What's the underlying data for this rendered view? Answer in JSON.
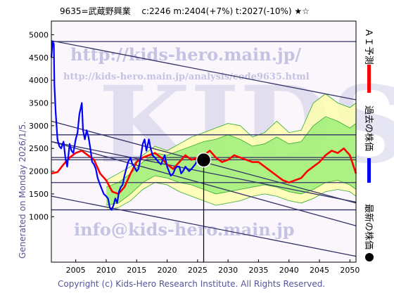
{
  "header": {
    "title": "9635=武蔵野興業　 c:2246  m:2404(+7%)  t:2027(-10%)  ★☆"
  },
  "left_label": "Generated on Monday 2026/1/5.",
  "copyright": "Copyright (c) Kids-Hero Research Institute. All Rights Reserved.",
  "watermarks": {
    "url_large": "http://kids-hero.main.jp/",
    "url_small": "http://kids-hero.main.jp/analysis/code9635.html",
    "email": "info@kids-hero.main.jp",
    "big": "KIDS"
  },
  "legend": {
    "ai_forecast": "ＡＩ予測",
    "past_price": "過去の株価",
    "latest_price": "最新の株価"
  },
  "colors": {
    "past_price": "#0000ff",
    "ai_forecast": "#ff0000",
    "latest_marker": "#000000",
    "trend_lines": "#333366",
    "band_outer": "#ffffaa",
    "band_inner": "#99ee77",
    "band_lines": "#33aa33",
    "background": "#faf6fb"
  },
  "chart_data": {
    "type": "line",
    "title": "9635=武蔵野興業　 c:2246  m:2404(+7%)  t:2027(-10%)  ★☆",
    "x_ticks": [
      2005,
      2010,
      2015,
      2020,
      2025,
      2030,
      2035,
      2040,
      2045,
      2050
    ],
    "y_ticks": [
      1000,
      1500,
      2000,
      2500,
      3000,
      3500,
      4000,
      4500,
      5000
    ],
    "xlim": [
      2001,
      2051
    ],
    "ylim": [
      0,
      5300
    ],
    "latest": {
      "x": 2026.0,
      "y": 2246
    },
    "series": [
      {
        "name": "過去の株価",
        "x": [
          2001.0,
          2001.2,
          2001.4,
          2001.5,
          2001.7,
          2002.0,
          2002.3,
          2002.6,
          2003.0,
          2003.3,
          2003.6,
          2004.0,
          2004.3,
          2004.6,
          2005.0,
          2005.3,
          2005.6,
          2006.0,
          2006.2,
          2006.5,
          2006.8,
          2007.1,
          2007.4,
          2007.7,
          2008.0,
          2008.3,
          2008.6,
          2009.0,
          2009.3,
          2009.6,
          2010.0,
          2010.3,
          2010.6,
          2010.9,
          2011.2,
          2011.5,
          2011.8,
          2012.1,
          2012.4,
          2012.7,
          2013.0,
          2013.3,
          2013.6,
          2014.0,
          2014.3,
          2014.6,
          2015.0,
          2015.3,
          2015.6,
          2016.0,
          2016.3,
          2016.6,
          2017.0,
          2017.3,
          2017.6,
          2018.0,
          2018.3,
          2018.6,
          2019.0,
          2019.3,
          2019.6,
          2020.0,
          2020.3,
          2020.6,
          2021.0,
          2021.3,
          2021.6,
          2022.0,
          2022.3,
          2022.6,
          2023.0,
          2023.3,
          2023.6,
          2024.0,
          2024.3,
          2024.6,
          2025.0,
          2025.3,
          2025.6,
          2026.0
        ],
        "values": [
          4500,
          4850,
          4800,
          3900,
          3300,
          2700,
          2550,
          2500,
          2650,
          2300,
          2100,
          2600,
          2450,
          2400,
          2700,
          2850,
          3250,
          3500,
          2900,
          2700,
          2900,
          2750,
          2500,
          2200,
          2150,
          2050,
          1850,
          1700,
          1600,
          1500,
          1450,
          1400,
          1200,
          1150,
          1250,
          1400,
          1300,
          1550,
          1650,
          1700,
          1900,
          2050,
          2200,
          2300,
          2150,
          2100,
          2000,
          2050,
          2250,
          2600,
          2700,
          2450,
          2700,
          2500,
          2350,
          2300,
          2250,
          2200,
          2150,
          2250,
          2350,
          2100,
          2000,
          1900,
          1950,
          2050,
          2100,
          2100,
          1950,
          2000,
          2100,
          2050,
          2000,
          2050,
          2100,
          2150,
          2250,
          2300,
          2200,
          2246
        ]
      },
      {
        "name": "ＡＩ予測",
        "x": [
          2001.0,
          2002.0,
          2003.0,
          2004.0,
          2005.0,
          2006.0,
          2007.0,
          2008.0,
          2009.0,
          2010.0,
          2011.0,
          2012.0,
          2013.0,
          2014.0,
          2015.0,
          2016.0,
          2017.0,
          2018.0,
          2019.0,
          2020.0,
          2021.0,
          2022.0,
          2023.0,
          2024.0,
          2025.0,
          2026.0,
          2027.0,
          2028.0,
          2029.0,
          2030.0,
          2031.0,
          2032.0,
          2033.0,
          2034.0,
          2035.0,
          2036.0,
          2037.0,
          2038.0,
          2039.0,
          2040.0,
          2041.0,
          2042.0,
          2043.0,
          2044.0,
          2045.0,
          2046.0,
          2047.0,
          2048.0,
          2049.0,
          2050.0,
          2051.0
        ],
        "values": [
          1950,
          1980,
          2150,
          2300,
          2400,
          2450,
          2350,
          2250,
          1950,
          1800,
          1550,
          1500,
          1650,
          1950,
          2200,
          2300,
          2350,
          2400,
          2300,
          2150,
          2050,
          2200,
          2350,
          2250,
          2300,
          2350,
          2450,
          2300,
          2200,
          2250,
          2350,
          2300,
          2250,
          2200,
          2200,
          2100,
          2000,
          1900,
          1800,
          1750,
          1800,
          1850,
          2000,
          2100,
          2200,
          2350,
          2450,
          2400,
          2500,
          2350,
          1950
        ]
      },
      {
        "name": "band_upper_outer",
        "x": [
          2010,
          2012,
          2014,
          2016,
          2018,
          2020,
          2022,
          2024,
          2026,
          2028,
          2030,
          2032,
          2034,
          2036,
          2038,
          2040,
          2042,
          2044,
          2046,
          2048,
          2050,
          2051
        ],
        "values": [
          1800,
          1950,
          2100,
          2350,
          2550,
          2450,
          2600,
          2750,
          2850,
          2950,
          3050,
          3000,
          2750,
          2850,
          3100,
          2850,
          2900,
          3500,
          3700,
          3500,
          3400,
          3500
        ]
      },
      {
        "name": "band_upper_inner",
        "x": [
          2010,
          2012,
          2014,
          2016,
          2018,
          2020,
          2022,
          2024,
          2026,
          2028,
          2030,
          2032,
          2034,
          2036,
          2038,
          2040,
          2042,
          2044,
          2046,
          2048,
          2050,
          2051
        ],
        "values": [
          1650,
          1750,
          1950,
          2200,
          2400,
          2350,
          2450,
          2550,
          2650,
          2700,
          2800,
          2700,
          2550,
          2600,
          2750,
          2600,
          2650,
          3000,
          3200,
          3100,
          2950,
          3050
        ]
      },
      {
        "name": "band_lower_inner",
        "x": [
          2010,
          2012,
          2014,
          2016,
          2018,
          2020,
          2022,
          2024,
          2026,
          2028,
          2030,
          2032,
          2034,
          2036,
          2038,
          2040,
          2042,
          2044,
          2046,
          2048,
          2050,
          2051
        ],
        "values": [
          1250,
          1300,
          1500,
          1750,
          1900,
          1850,
          1750,
          1700,
          1600,
          1500,
          1550,
          1600,
          1650,
          1700,
          1650,
          1550,
          1500,
          1600,
          1750,
          1800,
          1700,
          1600
        ]
      },
      {
        "name": "band_lower_outer",
        "x": [
          2010,
          2012,
          2014,
          2016,
          2018,
          2020,
          2022,
          2024,
          2026,
          2028,
          2030,
          2032,
          2034,
          2036,
          2038,
          2040,
          2042,
          2044,
          2046,
          2048,
          2050,
          2051
        ],
        "values": [
          1150,
          1200,
          1350,
          1600,
          1750,
          1700,
          1550,
          1450,
          1350,
          1250,
          1300,
          1350,
          1450,
          1500,
          1450,
          1350,
          1300,
          1400,
          1550,
          1600,
          1550,
          1450
        ]
      }
    ],
    "trend_lines": [
      {
        "x": [
          2001,
          2051
        ],
        "y": [
          4870,
          3570
        ]
      },
      {
        "x": [
          2001,
          2051
        ],
        "y": [
          3100,
          1300
        ]
      },
      {
        "x": [
          2001,
          2051
        ],
        "y": [
          2650,
          1320
        ]
      },
      {
        "x": [
          2001,
          2051
        ],
        "y": [
          1450,
          130
        ]
      },
      {
        "x": [
          2001,
          2051
        ],
        "y": [
          2650,
          800
        ]
      }
    ],
    "h_lines": [
      4850,
      2800,
      2300,
      2250,
      1750,
      1150
    ],
    "v_line_x": 2026.0
  }
}
